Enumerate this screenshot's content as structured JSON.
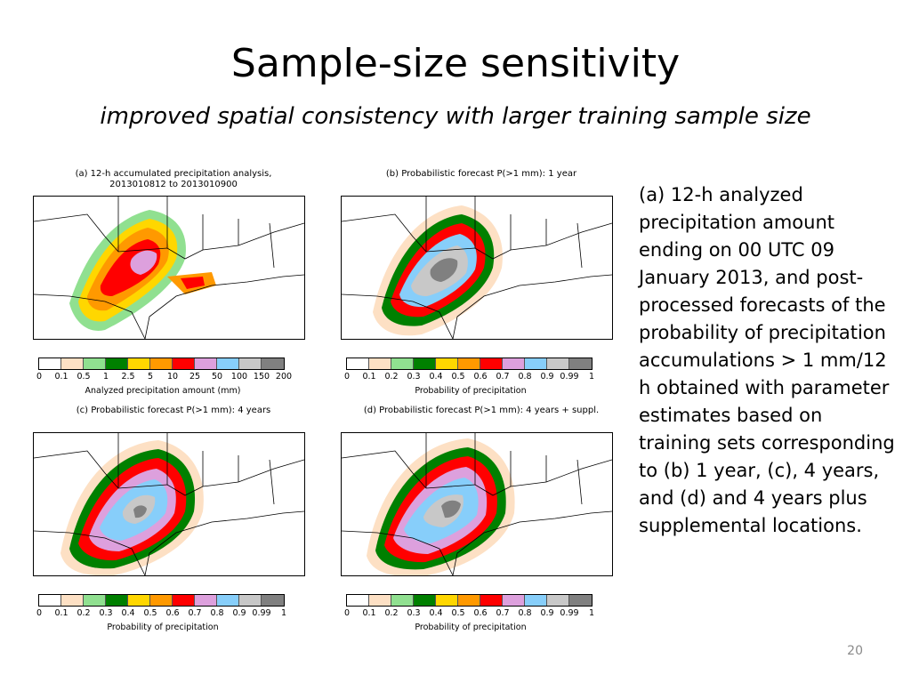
{
  "slide": {
    "title": "Sample-size sensitivity",
    "subtitle": "improved spatial consistency with larger training sample size",
    "description": "(a) 12-h analyzed precipitation amount ending on 00 UTC 09 January 2013, and post-processed forecasts of the probability of precipitation accumulations > 1 mm/12 h obtained with parameter estimates based on training sets corresponding to (b) 1 year, (c), 4 years, and (d) and 4 years plus supplemental locations.",
    "slide_number": "20"
  },
  "colors": {
    "scale": [
      "#ffffff",
      "#fde0c4",
      "#90e090",
      "#008000",
      "#ffd700",
      "#ff9900",
      "#ff0000",
      "#dda0dd",
      "#87cefa",
      "#c8c8c8",
      "#808080"
    ]
  },
  "panels": {
    "a": {
      "title_line1": "(a) 12-h accumulated precipitation analysis,",
      "title_line2": "2013010812 to 2013010900",
      "colorbar_ticks": [
        "0",
        "0.1",
        "0.5",
        "1",
        "2.5",
        "5",
        "10",
        "25",
        "50",
        "100",
        "150",
        "200"
      ],
      "colorbar_label": "Analyzed precipitation amount (mm)"
    },
    "b": {
      "title": "(b) Probabilistic forecast P(>1 mm): 1 year",
      "colorbar_ticks": [
        "0",
        "0.1",
        "0.2",
        "0.3",
        "0.4",
        "0.5",
        "0.6",
        "0.7",
        "0.8",
        "0.9",
        "0.99",
        "1"
      ],
      "colorbar_label": "Probability of precipitation"
    },
    "c": {
      "title": "(c) Probabilistic forecast P(>1 mm): 4 years",
      "colorbar_ticks": [
        "0",
        "0.1",
        "0.2",
        "0.3",
        "0.4",
        "0.5",
        "0.6",
        "0.7",
        "0.8",
        "0.9",
        "0.99",
        "1"
      ],
      "colorbar_label": "Probability of precipitation"
    },
    "d": {
      "title": "(d) Probabilistic forecast P(>1 mm): 4 years + suppl.",
      "colorbar_ticks": [
        "0",
        "0.1",
        "0.2",
        "0.3",
        "0.4",
        "0.5",
        "0.6",
        "0.7",
        "0.8",
        "0.9",
        "0.99",
        "1"
      ],
      "colorbar_label": "Probability of precipitation"
    }
  }
}
